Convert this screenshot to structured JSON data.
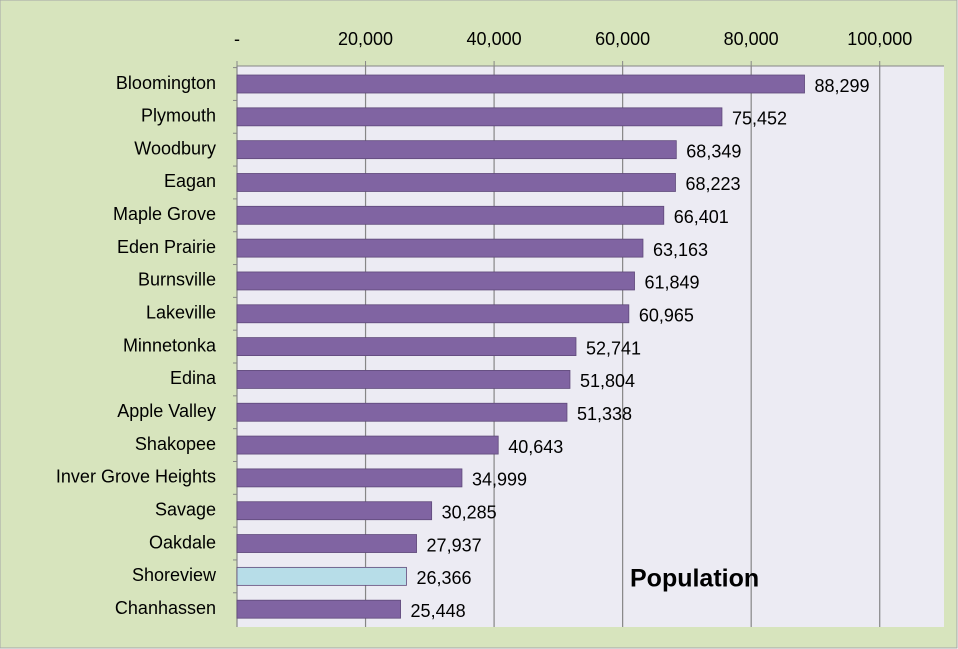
{
  "chart_data": {
    "type": "bar",
    "orientation": "horizontal",
    "annotation": "Population",
    "categories": [
      "Bloomington",
      "Plymouth",
      "Woodbury",
      "Eagan",
      "Maple Grove",
      "Eden Prairie",
      "Burnsville",
      "Lakeville",
      "Minnetonka",
      "Edina",
      "Apple Valley",
      "Shakopee",
      "Inver Grove Heights",
      "Savage",
      "Oakdale",
      "Shoreview",
      "Chanhassen"
    ],
    "values": [
      88299,
      75452,
      68349,
      68223,
      66401,
      63163,
      61849,
      60965,
      52741,
      51804,
      51338,
      40643,
      34999,
      30285,
      27937,
      26366,
      25448
    ],
    "value_labels": [
      "88,299",
      "75,452",
      "68,349",
      "68,223",
      "66,401",
      "63,163",
      "61,849",
      "60,965",
      "52,741",
      "51,804",
      "51,338",
      "40,643",
      "34,999",
      "30,285",
      "27,937",
      "26,366",
      "25,448"
    ],
    "colors": [
      "#8064a2",
      "#8064a2",
      "#8064a2",
      "#8064a2",
      "#8064a2",
      "#8064a2",
      "#8064a2",
      "#8064a2",
      "#8064a2",
      "#8064a2",
      "#8064a2",
      "#8064a2",
      "#8064a2",
      "#8064a2",
      "#8064a2",
      "#b7dde8",
      "#8064a2"
    ],
    "xlim": [
      0,
      110000
    ],
    "xticks": [
      {
        "value": 0,
        "label": "-"
      },
      {
        "value": 20000,
        "label": "20,000"
      },
      {
        "value": 40000,
        "label": "40,000"
      },
      {
        "value": 60000,
        "label": "60,000"
      },
      {
        "value": 80000,
        "label": "80,000"
      },
      {
        "value": 100000,
        "label": "100,000"
      }
    ],
    "grid": true
  }
}
